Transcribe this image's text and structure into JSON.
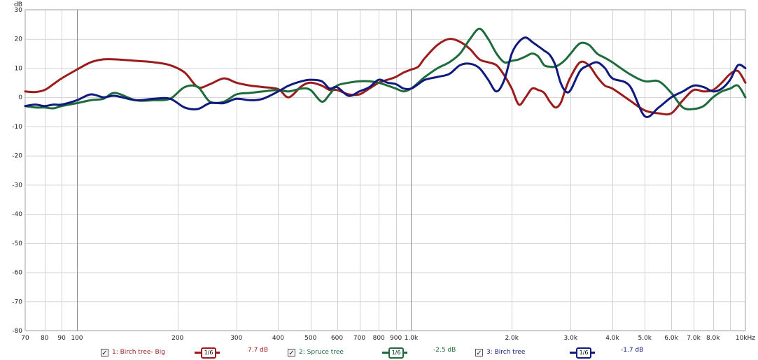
{
  "chart_data": {
    "type": "line",
    "ylabel": "dB",
    "xscale": "log",
    "xlim": [
      70,
      10000
    ],
    "ylim": [
      -80,
      30
    ],
    "grid": true,
    "y_ticks": [
      "30",
      "20",
      "10",
      "0",
      "-10",
      "-20",
      "-30",
      "-40",
      "-50",
      "-60",
      "-70",
      "-80"
    ],
    "x_ticks": [
      {
        "v": 70,
        "label": "70"
      },
      {
        "v": 80,
        "label": "80"
      },
      {
        "v": 90,
        "label": "90"
      },
      {
        "v": 100,
        "label": "100"
      },
      {
        "v": 200,
        "label": "200"
      },
      {
        "v": 300,
        "label": "300"
      },
      {
        "v": 400,
        "label": "400"
      },
      {
        "v": 500,
        "label": "500"
      },
      {
        "v": 600,
        "label": "600"
      },
      {
        "v": 700,
        "label": "700"
      },
      {
        "v": 800,
        "label": "800"
      },
      {
        "v": 900,
        "label": "900"
      },
      {
        "v": 1000,
        "label": "1.0k"
      },
      {
        "v": 2000,
        "label": "2.0k"
      },
      {
        "v": 3000,
        "label": "3.0k"
      },
      {
        "v": 4000,
        "label": "4.0k"
      },
      {
        "v": 5000,
        "label": "5.0k"
      },
      {
        "v": 6000,
        "label": "6.0k"
      },
      {
        "v": 7000,
        "label": "7.0k"
      },
      {
        "v": 8000,
        "label": "8.0k"
      },
      {
        "v": 10000,
        "label": "10kHz"
      }
    ],
    "series": [
      {
        "name": "1: Birch tree- Big",
        "color": "#9b1c1c",
        "smoothing": "1/6",
        "offset": "7.7 dB",
        "x": [
          70,
          75,
          80,
          85,
          90,
          100,
          110,
          120,
          130,
          150,
          170,
          190,
          210,
          230,
          250,
          275,
          300,
          330,
          360,
          400,
          430,
          470,
          500,
          540,
          570,
          600,
          650,
          700,
          750,
          800,
          850,
          900,
          950,
          1000,
          1050,
          1100,
          1200,
          1300,
          1400,
          1500,
          1600,
          1700,
          1800,
          1900,
          2000,
          2100,
          2200,
          2300,
          2400,
          2500,
          2600,
          2700,
          2800,
          2900,
          3000,
          3200,
          3400,
          3600,
          3800,
          4000,
          4500,
          5000,
          5500,
          6000,
          6500,
          7000,
          7500,
          8000,
          8500,
          9000,
          9500,
          10000
        ],
        "y": [
          2,
          1.8,
          2.5,
          4.5,
          6.5,
          9.5,
          12,
          13,
          13,
          12.5,
          12,
          11,
          8.5,
          3.5,
          4.5,
          6.5,
          5,
          4,
          3.5,
          2.8,
          0,
          3.8,
          5,
          4,
          2.5,
          2.5,
          1,
          1,
          3,
          5,
          6,
          7,
          8.5,
          9.5,
          10.5,
          13.5,
          18,
          20,
          19,
          16.5,
          13,
          12,
          11,
          7.5,
          3,
          -2.5,
          0,
          3,
          2.5,
          1.5,
          -1.5,
          -3.5,
          -2,
          3,
          7,
          12,
          11,
          7,
          4,
          3,
          -1,
          -4.5,
          -5.5,
          -5.5,
          -1,
          2.5,
          2,
          2.5,
          5,
          8,
          9,
          5
        ]
      },
      {
        "name": "2: Spruce tree",
        "color": "#1e6b3c",
        "smoothing": "1/6",
        "offset": "-2.5 dB",
        "x": [
          70,
          75,
          80,
          85,
          90,
          100,
          110,
          120,
          130,
          150,
          170,
          190,
          210,
          230,
          250,
          275,
          300,
          330,
          360,
          400,
          430,
          470,
          500,
          540,
          570,
          600,
          650,
          700,
          750,
          800,
          850,
          900,
          950,
          1000,
          1050,
          1100,
          1200,
          1300,
          1400,
          1500,
          1600,
          1700,
          1800,
          1900,
          2000,
          2100,
          2200,
          2300,
          2400,
          2500,
          2600,
          2700,
          2800,
          2900,
          3000,
          3200,
          3400,
          3600,
          3800,
          4000,
          4500,
          5000,
          5500,
          6000,
          6500,
          7000,
          7500,
          8000,
          8500,
          9000,
          9500,
          10000
        ],
        "y": [
          -3,
          -3.5,
          -3.5,
          -3.8,
          -3,
          -2,
          -1,
          -0.5,
          1.5,
          -1,
          -1,
          -0.5,
          3.5,
          3.5,
          -1.5,
          -1.5,
          1,
          1.5,
          2,
          2.5,
          2,
          3,
          2.5,
          -1.5,
          1,
          4,
          5,
          5.5,
          5.5,
          5,
          4,
          3,
          2,
          3,
          5,
          7,
          10,
          12,
          15,
          20,
          23.5,
          20,
          15,
          12,
          12.5,
          13,
          14,
          15,
          14,
          11,
          10.5,
          10.5,
          11.5,
          13,
          15,
          18.5,
          18,
          15,
          13.5,
          12,
          8,
          5.5,
          5.5,
          1.5,
          -3.5,
          -4,
          -3,
          0,
          2,
          3,
          4,
          0
        ]
      },
      {
        "name": "3: Birch tree",
        "color": "#101a7c",
        "smoothing": "1/6",
        "offset": "-1.7 dB",
        "x": [
          70,
          75,
          80,
          85,
          90,
          100,
          110,
          120,
          130,
          150,
          170,
          190,
          210,
          230,
          250,
          275,
          300,
          330,
          360,
          400,
          430,
          470,
          500,
          540,
          570,
          600,
          650,
          700,
          750,
          800,
          850,
          900,
          950,
          1000,
          1050,
          1100,
          1200,
          1300,
          1400,
          1500,
          1600,
          1700,
          1800,
          1900,
          2000,
          2100,
          2200,
          2300,
          2400,
          2500,
          2600,
          2700,
          2800,
          2900,
          3000,
          3200,
          3400,
          3600,
          3800,
          4000,
          4500,
          5000,
          5500,
          6000,
          6500,
          7000,
          7500,
          8000,
          8500,
          9000,
          9500,
          10000
        ],
        "y": [
          -3,
          -2.5,
          -3,
          -2.5,
          -2.5,
          -1,
          1,
          0,
          0.5,
          -1,
          -0.5,
          -0.5,
          -3.5,
          -4,
          -2,
          -2,
          -0.5,
          -1,
          -0.5,
          2,
          4,
          5.5,
          6,
          5.5,
          3,
          3.5,
          0.5,
          2,
          3.5,
          6,
          5,
          4.5,
          3,
          3,
          4.5,
          6,
          7,
          8,
          11,
          11.5,
          10,
          6,
          2,
          6,
          15,
          19,
          20.5,
          19,
          17.5,
          16,
          14.5,
          11,
          5,
          2,
          2.5,
          9,
          11,
          12,
          10,
          6.5,
          4,
          -6.5,
          -3.5,
          0,
          2,
          4,
          3.5,
          2,
          3,
          6,
          11,
          10
        ]
      }
    ]
  }
}
